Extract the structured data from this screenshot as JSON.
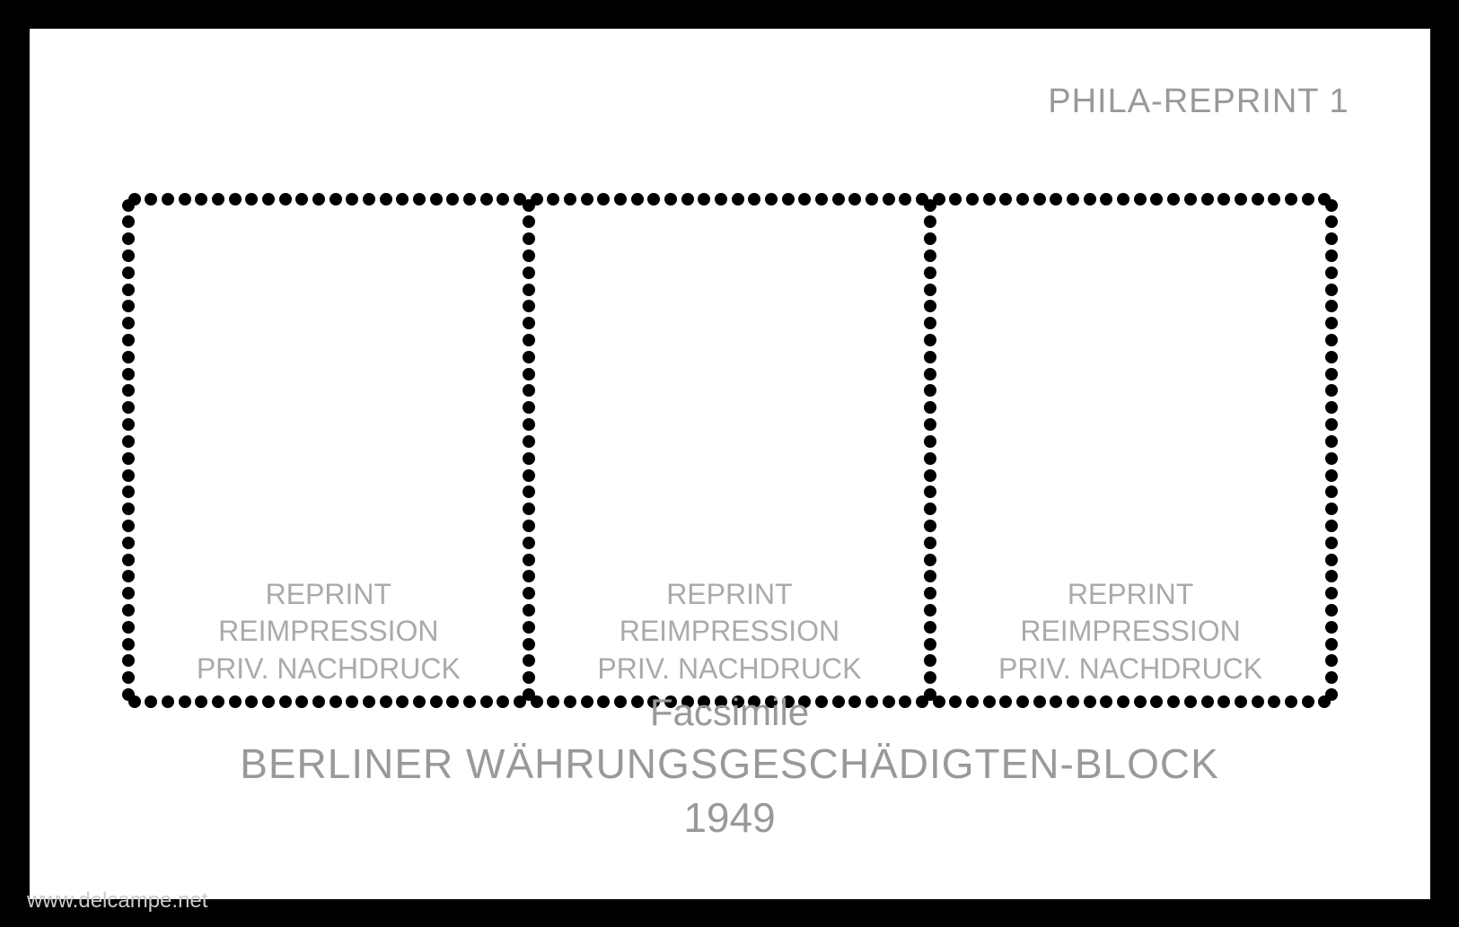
{
  "sheet": {
    "top_right_label": "PHILA-REPRINT 1",
    "background_color": "#ffffff",
    "border_color": "#000000"
  },
  "stamps": {
    "count": 3,
    "text_line1": "REPRINT",
    "text_line2": "REIMPRESSION",
    "text_line3": "PRIV. NACHDRUCK",
    "text_color": "#aaaaaa",
    "perforation_color": "#000000",
    "perforation_dot_size": 14,
    "horizontal_dots": 24,
    "vertical_dots": 30
  },
  "bottom": {
    "facsimile": "Facsimile",
    "title": "BERLINER WÄHRUNGSGESCHÄDIGTEN-BLOCK",
    "year": "1949",
    "text_color": "#999999"
  },
  "watermark": "www.delcampe.net"
}
